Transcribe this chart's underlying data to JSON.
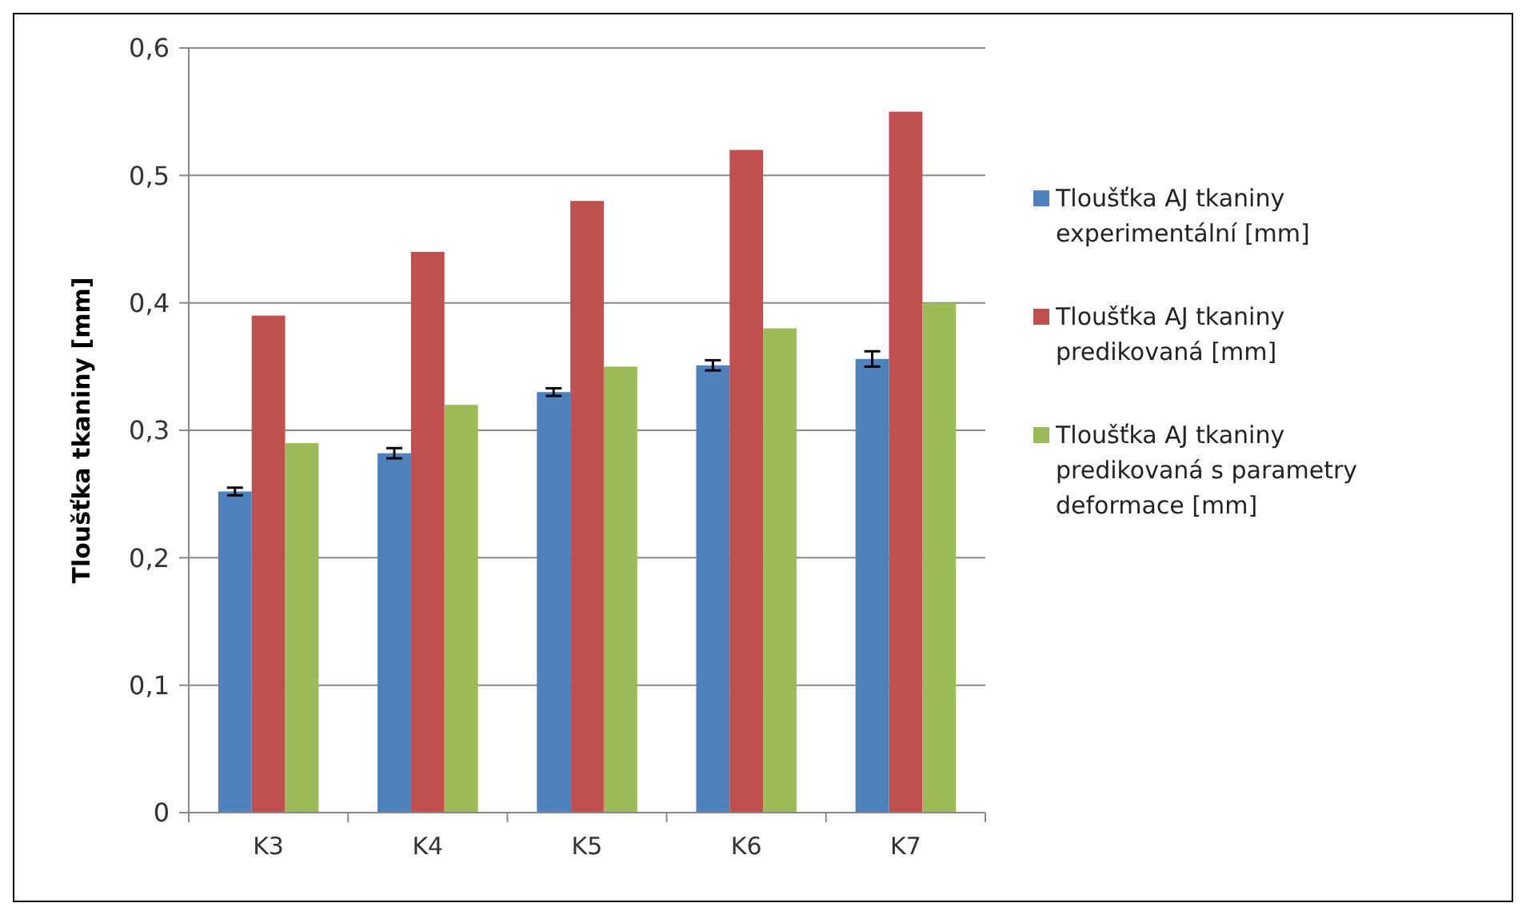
{
  "chart_data": {
    "type": "bar",
    "ylabel": "Tloušťka tkaniny [mm]",
    "categories": [
      "K3",
      "K4",
      "K5",
      "K6",
      "K7"
    ],
    "series": [
      {
        "name": "Tloušťka AJ tkaniny experimentální [mm]",
        "color": "#4f81bd",
        "values": [
          0.252,
          0.282,
          0.33,
          0.351,
          0.356
        ],
        "errors": [
          0.003,
          0.004,
          0.003,
          0.004,
          0.006
        ]
      },
      {
        "name": "Tloušťka AJ tkaniny predikovaná [mm]",
        "color": "#c0504d",
        "values": [
          0.39,
          0.44,
          0.48,
          0.52,
          0.55
        ]
      },
      {
        "name": "Tloušťka AJ tkaniny predikovaná s parametry deformace [mm]",
        "color": "#9bbb59",
        "values": [
          0.29,
          0.32,
          0.35,
          0.38,
          0.4
        ]
      }
    ],
    "ylim": [
      0,
      0.6
    ],
    "yticks": [
      {
        "value": 0,
        "label": "0"
      },
      {
        "value": 0.1,
        "label": "0,1"
      },
      {
        "value": 0.2,
        "label": "0,2"
      },
      {
        "value": 0.3,
        "label": "0,3"
      },
      {
        "value": 0.4,
        "label": "0,4"
      },
      {
        "value": 0.5,
        "label": "0,5"
      },
      {
        "value": 0.6,
        "label": "0,6"
      }
    ],
    "grid": "y",
    "legend": "right"
  }
}
